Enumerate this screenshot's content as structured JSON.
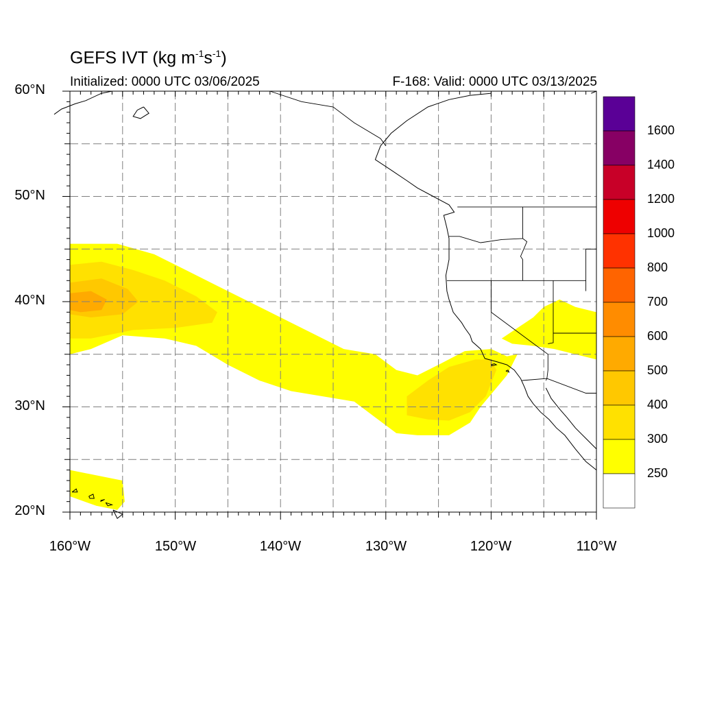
{
  "header": {
    "title_prefix": "GEFS IVT (kg m",
    "title_exp1": "-1",
    "title_mid": "s",
    "title_exp2": "-1",
    "title_suffix": ")",
    "initialized": "Initialized: 0000 UTC 03/06/2025",
    "valid": "F-168: Valid: 0000 UTC 03/13/2025"
  },
  "axes": {
    "lat_labels": [
      "60°N",
      "50°N",
      "40°N",
      "30°N",
      "20°N"
    ],
    "lon_labels": [
      "160°W",
      "150°W",
      "140°W",
      "130°W",
      "120°W",
      "110°W"
    ],
    "lat_range": [
      20,
      60
    ],
    "lon_range": [
      -160,
      -110
    ],
    "grid": true
  },
  "colorbar": {
    "labels": [
      "1600",
      "1400",
      "1200",
      "1000",
      "800",
      "700",
      "600",
      "500",
      "400",
      "300",
      "250"
    ],
    "colors": [
      "#ffffff",
      "#ffff00",
      "#ffe100",
      "#ffc800",
      "#ffaa00",
      "#ff8c00",
      "#ff6400",
      "#ff3200",
      "#ee0000",
      "#c80028",
      "#870064",
      "#5a0096"
    ]
  },
  "chart_data": {
    "type": "heatmap",
    "variable": "IVT (kg m-1 s-1)",
    "levels": [
      250,
      300,
      400,
      500,
      600,
      700,
      800,
      1000,
      1200,
      1400,
      1600
    ],
    "xlim": [
      -160,
      -110
    ],
    "ylim": [
      20,
      60
    ],
    "regions": [
      {
        "level": 250,
        "poly": [
          [
            -160,
            45.5
          ],
          [
            -155.5,
            45.5
          ],
          [
            -152,
            44.5
          ],
          [
            -149,
            43
          ],
          [
            -146,
            41.5
          ],
          [
            -143,
            40
          ],
          [
            -140,
            38.5
          ],
          [
            -137,
            37
          ],
          [
            -134,
            35.5
          ],
          [
            -131,
            35
          ],
          [
            -129,
            33.5
          ],
          [
            -127,
            33
          ],
          [
            -125,
            34
          ],
          [
            -122.5,
            35.3
          ],
          [
            -120,
            35.5
          ],
          [
            -118.5,
            34.8
          ],
          [
            -117.5,
            35
          ],
          [
            -118.5,
            33
          ],
          [
            -121,
            30
          ],
          [
            -122,
            28.5
          ],
          [
            -124,
            27.3
          ],
          [
            -127,
            27.3
          ],
          [
            -129,
            27.5
          ],
          [
            -131,
            29
          ],
          [
            -133,
            30.5
          ],
          [
            -136,
            31
          ],
          [
            -139,
            31.5
          ],
          [
            -142,
            32.5
          ],
          [
            -145,
            34
          ],
          [
            -148,
            35.8
          ],
          [
            -151,
            36.5
          ],
          [
            -155,
            36.8
          ],
          [
            -158,
            35.5
          ],
          [
            -160,
            35
          ]
        ]
      },
      {
        "level": 250,
        "poly": [
          [
            -160,
            24
          ],
          [
            -155,
            23
          ],
          [
            -154.8,
            21
          ],
          [
            -155.5,
            20.2
          ],
          [
            -157.5,
            20.6
          ],
          [
            -160,
            21.5
          ]
        ]
      },
      {
        "level": 250,
        "poly": [
          [
            -119,
            36.5
          ],
          [
            -117.5,
            37.5
          ],
          [
            -116,
            38.5
          ],
          [
            -115,
            39.5
          ],
          [
            -113.5,
            40.2
          ],
          [
            -112,
            39.5
          ],
          [
            -110,
            39
          ],
          [
            -110,
            34.5
          ],
          [
            -112,
            35
          ],
          [
            -114,
            35.5
          ],
          [
            -116,
            35.8
          ],
          [
            -118,
            36
          ]
        ]
      },
      {
        "level": 300,
        "poly": [
          [
            -160,
            43.5
          ],
          [
            -157,
            43.8
          ],
          [
            -154,
            43
          ],
          [
            -151,
            42
          ],
          [
            -148,
            40.5
          ],
          [
            -146,
            39
          ],
          [
            -146.5,
            38
          ],
          [
            -150,
            37.5
          ],
          [
            -154,
            37.3
          ],
          [
            -158,
            36.5
          ],
          [
            -160,
            36.5
          ]
        ]
      },
      {
        "level": 300,
        "poly": [
          [
            -128,
            31
          ],
          [
            -126,
            32.5
          ],
          [
            -124,
            33.8
          ],
          [
            -121.5,
            34.5
          ],
          [
            -120,
            34.5
          ],
          [
            -119.5,
            33.5
          ],
          [
            -120.5,
            31
          ],
          [
            -122,
            29.5
          ],
          [
            -124,
            28.7
          ],
          [
            -126,
            28.8
          ],
          [
            -128,
            29.2
          ]
        ]
      },
      {
        "level": 400,
        "poly": [
          [
            -160,
            41.8
          ],
          [
            -157,
            42.2
          ],
          [
            -154.5,
            41.2
          ],
          [
            -153.5,
            40
          ],
          [
            -155,
            38.8
          ],
          [
            -158,
            38.5
          ],
          [
            -160,
            38.8
          ]
        ]
      },
      {
        "level": 500,
        "poly": [
          [
            -160,
            40.8
          ],
          [
            -158,
            41
          ],
          [
            -156.5,
            40.2
          ],
          [
            -157,
            39.2
          ],
          [
            -159,
            39
          ],
          [
            -160,
            39.2
          ]
        ]
      }
    ]
  },
  "map": {
    "coastlines": [
      [
        [
          -120,
          59.8
        ],
        [
          -122,
          59.6
        ],
        [
          -124,
          59.2
        ],
        [
          -126,
          58.5
        ],
        [
          -128,
          57.2
        ],
        [
          -129.5,
          56
        ],
        [
          -130.5,
          54.8
        ],
        [
          -131,
          53.5
        ],
        [
          -129.5,
          52.5
        ],
        [
          -128,
          51.5
        ],
        [
          -127,
          50.8
        ],
        [
          -125.5,
          50
        ],
        [
          -124,
          49.2
        ],
        [
          -123.5,
          48.5
        ],
        [
          -124.5,
          48.2
        ],
        [
          -124.2,
          47
        ],
        [
          -124,
          46
        ],
        [
          -124,
          44
        ],
        [
          -124.3,
          42.5
        ],
        [
          -124.2,
          41
        ],
        [
          -124,
          40.2
        ],
        [
          -123.6,
          39
        ],
        [
          -122.8,
          38
        ],
        [
          -122.5,
          37.5
        ],
        [
          -122,
          36.8
        ],
        [
          -121.8,
          36.2
        ],
        [
          -121,
          35.5
        ],
        [
          -120.6,
          34.6
        ],
        [
          -119.5,
          34.3
        ],
        [
          -118.5,
          34
        ],
        [
          -117.8,
          33.5
        ],
        [
          -117.2,
          32.7
        ],
        [
          -116.8,
          31.8
        ],
        [
          -116.5,
          31
        ],
        [
          -116,
          30.3
        ],
        [
          -115.3,
          29.5
        ],
        [
          -114.5,
          28.8
        ],
        [
          -113.8,
          28
        ],
        [
          -113,
          27.3
        ],
        [
          -112,
          26
        ],
        [
          -111,
          24.8
        ],
        [
          -110,
          24
        ]
      ],
      [
        [
          -114.8,
          31.8
        ],
        [
          -114.3,
          30.8
        ],
        [
          -113.5,
          29.8
        ],
        [
          -112.8,
          29
        ],
        [
          -112,
          28
        ],
        [
          -111,
          27
        ],
        [
          -110,
          26
        ]
      ],
      [
        [
          -161.5,
          57.8
        ],
        [
          -160.8,
          58.3
        ],
        [
          -159.5,
          58.8
        ],
        [
          -158.5,
          59.1
        ],
        [
          -157,
          59.8
        ],
        [
          -156,
          60
        ]
      ],
      [
        [
          -153,
          58.5
        ],
        [
          -152.5,
          57.9
        ],
        [
          -153.3,
          57.4
        ],
        [
          -154,
          57.6
        ],
        [
          -153.6,
          58.2
        ],
        [
          -153,
          58.5
        ]
      ],
      [
        [
          -159.8,
          21.9
        ],
        [
          -159.4,
          22.2
        ],
        [
          -159.3,
          21.9
        ],
        [
          -159.8,
          21.9
        ]
      ],
      [
        [
          -158.2,
          21.5
        ],
        [
          -157.8,
          21.7
        ],
        [
          -157.7,
          21.3
        ],
        [
          -158.1,
          21.3
        ],
        [
          -158.2,
          21.5
        ]
      ],
      [
        [
          -157.1,
          21.1
        ],
        [
          -156.7,
          21.2
        ],
        [
          -157.1,
          21.0
        ]
      ],
      [
        [
          -156.6,
          20.9
        ],
        [
          -156.0,
          20.7
        ],
        [
          -156.4,
          20.6
        ],
        [
          -156.6,
          20.9
        ]
      ],
      [
        [
          -155.9,
          20.2
        ],
        [
          -155.0,
          19.8
        ],
        [
          -155.5,
          19.4
        ],
        [
          -155.9,
          20.2
        ]
      ],
      [
        [
          -120.0,
          34.0
        ],
        [
          -119.7,
          34.1
        ],
        [
          -119.5,
          34.0
        ],
        [
          -119.9,
          33.9
        ],
        [
          -120.0,
          34.0
        ]
      ],
      [
        [
          -118.6,
          33.4
        ],
        [
          -118.4,
          33.5
        ],
        [
          -118.3,
          33.3
        ],
        [
          -118.6,
          33.4
        ]
      ],
      [
        [
          -110.5,
          59.8
        ],
        [
          -110,
          60
        ]
      ]
    ],
    "borders": [
      [
        [
          -141,
          60
        ],
        [
          -138,
          59
        ],
        [
          -135,
          58.5
        ],
        [
          -133,
          57
        ],
        [
          -130.5,
          55.5
        ],
        [
          -130,
          54.8
        ]
      ],
      [
        [
          -123.2,
          49
        ],
        [
          -110,
          49
        ]
      ],
      [
        [
          -124,
          46.2
        ],
        [
          -123,
          46.2
        ],
        [
          -121,
          45.6
        ],
        [
          -119,
          45.9
        ],
        [
          -117,
          46
        ]
      ],
      [
        [
          -117,
          49
        ],
        [
          -117,
          46
        ],
        [
          -116.6,
          45.7
        ],
        [
          -117.2,
          44.3
        ],
        [
          -117,
          44
        ],
        [
          -117,
          42
        ]
      ],
      [
        [
          -124.2,
          42
        ],
        [
          -111,
          42
        ]
      ],
      [
        [
          -120,
          42
        ],
        [
          -120,
          39
        ],
        [
          -114.6,
          35
        ],
        [
          -114.6,
          33.5
        ],
        [
          -114.7,
          32.7
        ]
      ],
      [
        [
          -114.1,
          42
        ],
        [
          -114.1,
          36.1
        ],
        [
          -114.6,
          36
        ]
      ],
      [
        [
          -114.1,
          37
        ],
        [
          -110,
          37
        ]
      ],
      [
        [
          -111,
          45
        ],
        [
          -110,
          45
        ]
      ],
      [
        [
          -111,
          45
        ],
        [
          -111,
          41
        ]
      ],
      [
        [
          -117.1,
          32.5
        ],
        [
          -114.7,
          32.7
        ],
        [
          -111,
          31.3
        ],
        [
          -110,
          31.3
        ]
      ],
      [
        [
          -114.8,
          32.5
        ],
        [
          -114.7,
          32.7
        ]
      ]
    ]
  }
}
